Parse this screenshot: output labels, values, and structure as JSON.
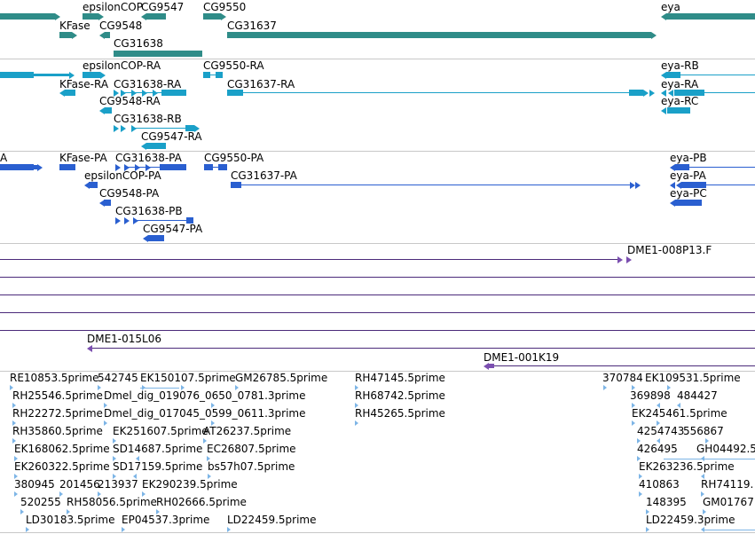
{
  "colors": {
    "gene": "#2f8c88",
    "transcript": "#1aa0c8",
    "protein": "#2a5fd0",
    "clone": "#7b4fb0",
    "clone_line": "#4b2a7a",
    "est": "#7db5e6",
    "separator": "#c8c8c8"
  },
  "tracks": {
    "genes": {
      "labels": [
        "epsilonCOP",
        "CG9547",
        "CG9550",
        "eya",
        "KFase",
        "CG9548",
        "CG31637",
        "CG31638"
      ]
    },
    "transcripts": {
      "labels": [
        "epsilonCOP-RA",
        "CG9550-RA",
        "eya-RB",
        "KFase-RA",
        "CG31638-RA",
        "CG31637-RA",
        "eya-RA",
        "CG9548-RA",
        "eya-RC",
        "CG31638-RB",
        "CG9547-RA"
      ]
    },
    "proteins": {
      "labels": [
        "A",
        "KFase-PA",
        "CG31638-PA",
        "CG9550-PA",
        "eya-PB",
        "epsilonCOP-PA",
        "CG31637-PA",
        "eya-PA",
        "CG9548-PA",
        "eya-PC",
        "CG31638-PB",
        "CG9547-PA"
      ]
    },
    "clones": {
      "labels": [
        "DME1-008P13.F",
        "DME1-015L06",
        "DME1-001K19"
      ]
    },
    "ests": {
      "rows": [
        [
          "RE10853.5prime",
          "542745",
          "EK150107.5prime",
          "GM26785.5prime",
          "RH47145.5prime",
          "370784",
          "EK109531.5prime"
        ],
        [
          "RH25546.5prime",
          "Dmel_dig_019076_0650_0781.3prime",
          "RH68742.5prime",
          "369898",
          "484427"
        ],
        [
          "RH22272.5prime",
          "Dmel_dig_017045_0599_0611.3prime",
          "RH45265.5prime",
          "EK245461.5prime"
        ],
        [
          "RH35860.5prime",
          "EK251607.5prime",
          "AT26237.5prime",
          "4254743",
          "556867"
        ],
        [
          "EK168062.5prime",
          "SD14687.5prime",
          "EC26807.5prime",
          "426495",
          "GH04492.5"
        ],
        [
          "EK260322.5prime",
          "SD17159.5prime",
          "bs57h07.5prime",
          "EK263236.5prime"
        ],
        [
          "380945",
          "201456",
          "213937",
          "EK290239.5prime",
          "410863",
          "RH74119."
        ],
        [
          "520255",
          "RH58056.5prime",
          "RH02666.5prime",
          "148395",
          "GM01767"
        ],
        [
          "LD30183.5prime",
          "EP04537.3prime",
          "LD22459.5prime",
          "LD22459.3prime"
        ]
      ]
    }
  }
}
